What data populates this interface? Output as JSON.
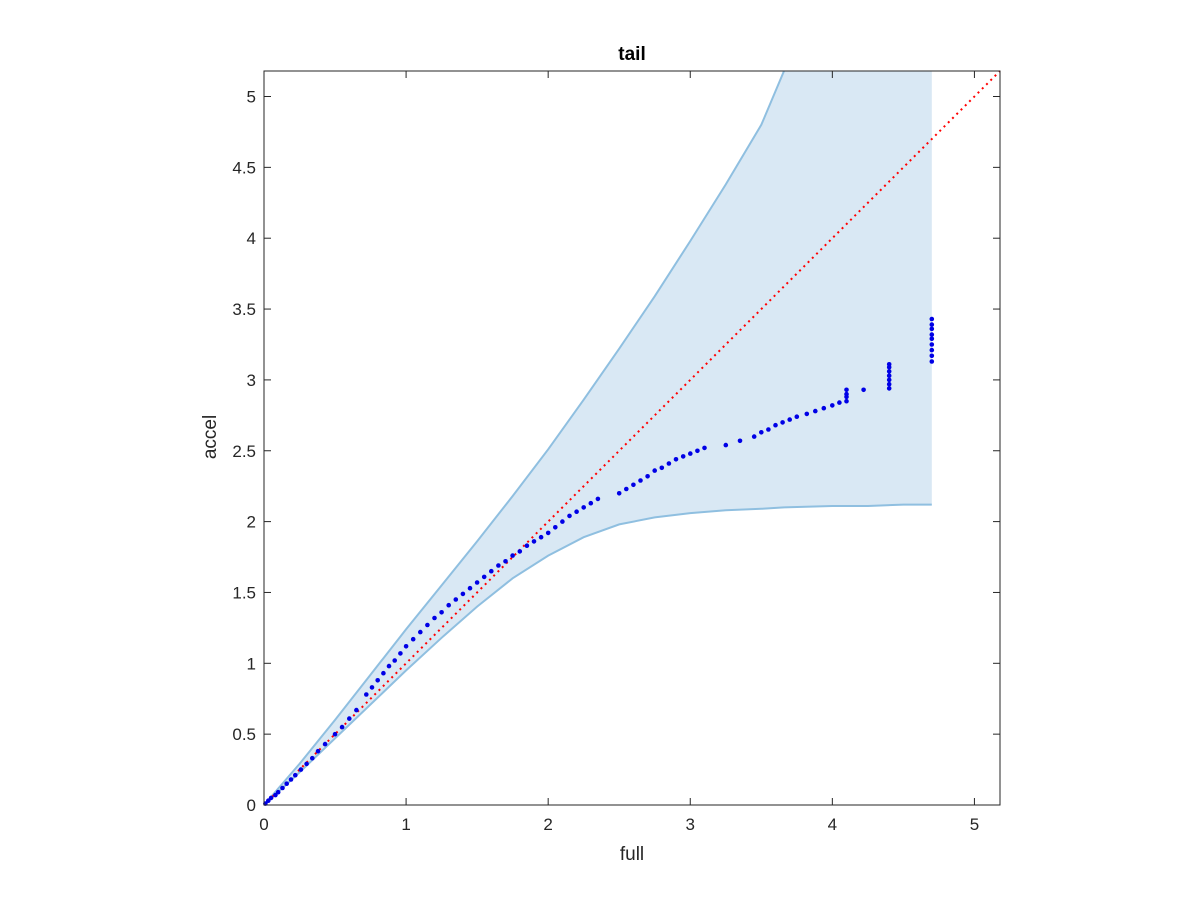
{
  "chart_data": {
    "type": "scatter",
    "title": "tail",
    "xlabel": "full",
    "ylabel": "accel",
    "xlim": [
      0,
      5.18
    ],
    "ylim": [
      0,
      5.18
    ],
    "xticks": [
      0,
      1,
      2,
      3,
      4,
      5
    ],
    "xtick_labels": [
      "0",
      "1",
      "2",
      "3",
      "4",
      "5"
    ],
    "yticks": [
      0,
      0.5,
      1,
      1.5,
      2,
      2.5,
      3,
      3.5,
      4,
      4.5,
      5
    ],
    "ytick_labels": [
      "0",
      "0.5",
      "1",
      "1.5",
      "2",
      "2.5",
      "3",
      "3.5",
      "4",
      "4.5",
      "5"
    ],
    "grid": false,
    "box": true,
    "colors": {
      "points": "#0000e6",
      "band_fill": "#d9e8f4",
      "band_edge": "#8fbfe0",
      "reference_line": "#ff0000",
      "axes": "#262626"
    },
    "reference_line": {
      "style": "dotted",
      "from": [
        0,
        0
      ],
      "to": [
        5.18,
        5.18
      ]
    },
    "band": {
      "x": [
        0,
        0.25,
        0.5,
        0.75,
        1.0,
        1.25,
        1.5,
        1.75,
        2.0,
        2.25,
        2.5,
        2.75,
        3.0,
        3.25,
        3.5,
        3.66,
        4.0,
        4.25,
        4.5,
        4.7
      ],
      "upper": [
        0,
        0.29,
        0.6,
        0.92,
        1.24,
        1.55,
        1.86,
        2.18,
        2.51,
        2.86,
        3.22,
        3.59,
        3.98,
        4.38,
        4.8,
        5.18,
        5.18,
        5.18,
        5.18,
        5.18
      ],
      "lower": [
        0,
        0.23,
        0.47,
        0.71,
        0.95,
        1.18,
        1.4,
        1.6,
        1.76,
        1.89,
        1.98,
        2.03,
        2.06,
        2.08,
        2.09,
        2.1,
        2.11,
        2.11,
        2.12,
        2.12
      ]
    },
    "series": [
      {
        "x": [
          0.01,
          0.03,
          0.05,
          0.08,
          0.1,
          0.13,
          0.16,
          0.19,
          0.22,
          0.26,
          0.3,
          0.34,
          0.38,
          0.43,
          0.5,
          0.55,
          0.6,
          0.65,
          0.72,
          0.76,
          0.8,
          0.84,
          0.88,
          0.92,
          0.96,
          1.0,
          1.05,
          1.1,
          1.15,
          1.2,
          1.25,
          1.3,
          1.35,
          1.4,
          1.45,
          1.5,
          1.55,
          1.6,
          1.65,
          1.7,
          1.75,
          1.8,
          1.85,
          1.9,
          1.95,
          2.0,
          2.05,
          2.1,
          2.15,
          2.2,
          2.25,
          2.3,
          2.35,
          2.5,
          2.55,
          2.6,
          2.65,
          2.7,
          2.75,
          2.8,
          2.85,
          2.9,
          2.95,
          3.0,
          3.05,
          3.1,
          3.25,
          3.35,
          3.45,
          3.5,
          3.55,
          3.6,
          3.65,
          3.7,
          3.75,
          3.82,
          3.88,
          3.94,
          4.0,
          4.05,
          4.1,
          4.1,
          4.1,
          4.1,
          4.22,
          4.4,
          4.4,
          4.4,
          4.4,
          4.4,
          4.4,
          4.4,
          4.7,
          4.7,
          4.7,
          4.7,
          4.7,
          4.7,
          4.7,
          4.7,
          4.7
        ],
        "y": [
          0.01,
          0.03,
          0.05,
          0.07,
          0.09,
          0.12,
          0.15,
          0.18,
          0.21,
          0.25,
          0.29,
          0.33,
          0.38,
          0.43,
          0.5,
          0.55,
          0.61,
          0.67,
          0.78,
          0.83,
          0.88,
          0.93,
          0.98,
          1.02,
          1.07,
          1.12,
          1.17,
          1.22,
          1.27,
          1.32,
          1.36,
          1.41,
          1.45,
          1.49,
          1.53,
          1.57,
          1.61,
          1.65,
          1.69,
          1.72,
          1.76,
          1.79,
          1.83,
          1.86,
          1.89,
          1.92,
          1.96,
          2.0,
          2.04,
          2.07,
          2.1,
          2.13,
          2.16,
          2.2,
          2.23,
          2.26,
          2.29,
          2.32,
          2.36,
          2.38,
          2.41,
          2.44,
          2.46,
          2.48,
          2.5,
          2.52,
          2.54,
          2.57,
          2.6,
          2.63,
          2.65,
          2.68,
          2.7,
          2.72,
          2.74,
          2.76,
          2.78,
          2.8,
          2.82,
          2.84,
          2.85,
          2.88,
          2.9,
          2.93,
          2.93,
          2.94,
          2.97,
          3.0,
          3.03,
          3.06,
          3.09,
          3.11,
          3.13,
          3.17,
          3.21,
          3.25,
          3.29,
          3.32,
          3.36,
          3.39,
          3.43
        ]
      }
    ]
  }
}
